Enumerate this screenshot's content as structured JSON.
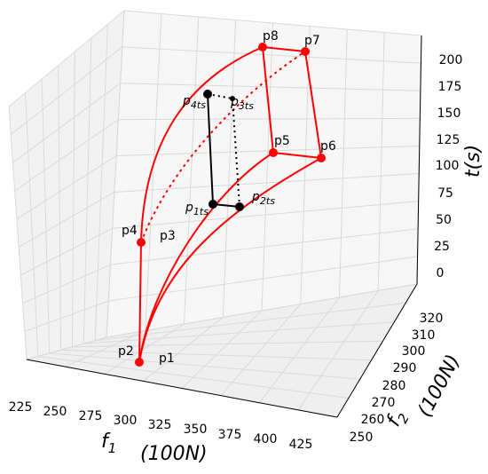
{
  "chart_data": {
    "type": "line3d",
    "axes": {
      "x": {
        "label_var": "f",
        "label_sub": "1",
        "label_unit": "(100N)",
        "ticks": [
          "225",
          "250",
          "275",
          "300",
          "325",
          "350",
          "375",
          "400",
          "425"
        ]
      },
      "y": {
        "label_var": "f",
        "label_sub": "2",
        "label_unit": "(100N)",
        "ticks": [
          "250",
          "260",
          "270",
          "280",
          "290",
          "300",
          "310",
          "320"
        ]
      },
      "z": {
        "label": "t(s)",
        "ticks": [
          "0",
          "25",
          "50",
          "75",
          "100",
          "125",
          "150",
          "175",
          "200"
        ]
      }
    },
    "grid": true,
    "points": [
      {
        "key": "p1",
        "text": "p1"
      },
      {
        "key": "p2",
        "text": "p2"
      },
      {
        "key": "p3",
        "text": "p3"
      },
      {
        "key": "p4",
        "text": "p4"
      },
      {
        "key": "p5",
        "text": "p5"
      },
      {
        "key": "p6",
        "text": "p6"
      },
      {
        "key": "p7",
        "text": "p7"
      },
      {
        "key": "p8",
        "text": "p8"
      },
      {
        "key": "p1ts",
        "base": "p",
        "sub": "1ts"
      },
      {
        "key": "p2ts",
        "base": "p",
        "sub": "2ts"
      },
      {
        "key": "p3ts",
        "base": "p",
        "sub": "3ts"
      },
      {
        "key": "p4ts",
        "base": "p",
        "sub": "4ts"
      }
    ],
    "colors": {
      "boundary": "#ff0000",
      "inner": "#000000",
      "grid": "#d9d9d9",
      "pane": "#f4f4f4"
    }
  }
}
